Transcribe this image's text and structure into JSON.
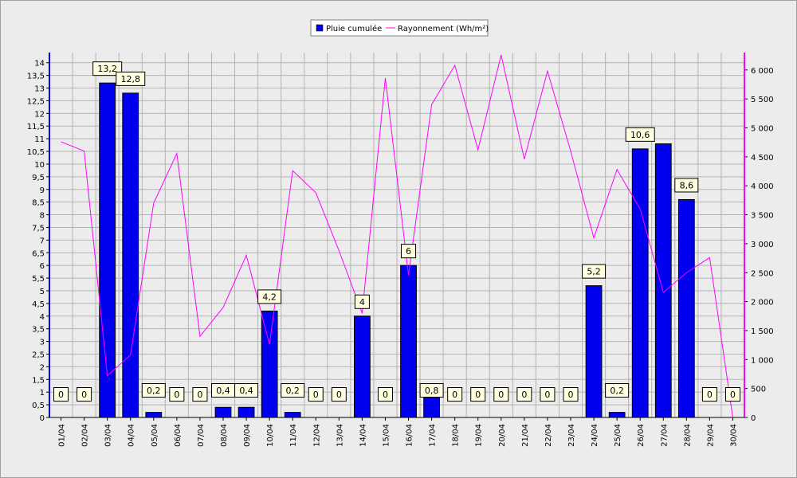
{
  "chart_data": {
    "type": "bar+line",
    "categories": [
      "01/04",
      "02/04",
      "03/04",
      "04/04",
      "05/04",
      "06/04",
      "07/04",
      "08/04",
      "09/04",
      "10/04",
      "11/04",
      "12/04",
      "13/04",
      "14/04",
      "15/04",
      "16/04",
      "17/04",
      "18/04",
      "19/04",
      "20/04",
      "21/04",
      "22/04",
      "23/04",
      "24/04",
      "25/04",
      "26/04",
      "27/04",
      "28/04",
      "29/04",
      "30/04"
    ],
    "series": [
      {
        "name": "Pluie cumulée",
        "type": "bar",
        "axis": "left",
        "color": "#0000ee",
        "values": [
          0,
          0,
          13.2,
          12.8,
          0.2,
          0,
          0,
          0.4,
          0.4,
          4.2,
          0.2,
          0,
          0,
          4,
          0,
          6,
          0.8,
          0,
          0,
          0,
          0,
          0,
          0,
          5.2,
          0.2,
          10.6,
          10.8,
          8.6,
          0,
          0
        ],
        "labels": [
          "0",
          "0",
          "13,2",
          "12,8",
          "0,2",
          "0",
          "0",
          "0,4",
          "0,4",
          "4,2",
          "0,2",
          "0",
          "0",
          "4",
          "0",
          "6",
          "0,8",
          "0",
          "0",
          "0",
          "0",
          "0",
          "0",
          "5,2",
          "0,2",
          "10,6",
          "",
          "8,6",
          "0",
          "0"
        ]
      },
      {
        "name": "Rayonnement (Wh/m²)",
        "type": "line",
        "axis": "right",
        "color": "#ff00ff",
        "values": [
          4760,
          4600,
          720,
          1080,
          3700,
          4560,
          1400,
          1900,
          2800,
          1260,
          4260,
          3880,
          2880,
          1800,
          5860,
          2460,
          5400,
          6080,
          4620,
          6260,
          4460,
          5980,
          4600,
          3100,
          4280,
          3600,
          2160,
          2500,
          2760,
          0
        ]
      }
    ],
    "y_left": {
      "min": 0,
      "max": 14.4,
      "ticks": [
        "0",
        "0,5",
        "1",
        "1,5",
        "2",
        "2,5",
        "3",
        "3,5",
        "4",
        "4,5",
        "5",
        "5,5",
        "6",
        "6,5",
        "7",
        "7,5",
        "8",
        "8,5",
        "9",
        "9,5",
        "10",
        "10,5",
        "11",
        "11,5",
        "12",
        "12,5",
        "13",
        "13,5",
        "14"
      ]
    },
    "y_right": {
      "min": 0,
      "max": 6300,
      "ticks": [
        "0",
        "500",
        "1 000",
        "1 500",
        "2 000",
        "2 500",
        "3 000",
        "3 500",
        "4 000",
        "4 500",
        "5 000",
        "5 500",
        "6 000"
      ]
    },
    "grid": true,
    "legend_position": "top-center",
    "colors": {
      "background": "#ececec",
      "plot": "#ececec",
      "grid": "#b4b4b4",
      "label_box": "#ffffe0",
      "left_axis": "#0000ee",
      "right_axis": "#ff00ff"
    }
  }
}
